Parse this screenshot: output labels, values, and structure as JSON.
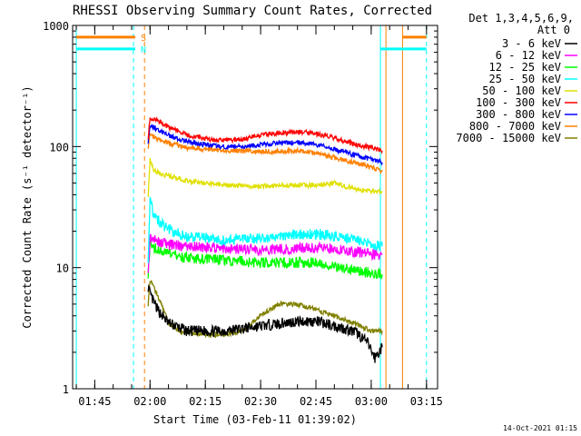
{
  "title": "RHESSI Observing Summary Count Rates, Corrected",
  "footer_date": "14-Oct-2021 01:15",
  "chart_data": {
    "type": "line",
    "title": "RHESSI Observing Summary Count Rates, Corrected",
    "xlabel": "Start Time (03-Feb-11 01:39:02)",
    "ylabel": "Corrected Count Rate (s⁻¹ detector⁻¹)",
    "yscale": "log",
    "ylim": [
      1,
      1000
    ],
    "xlim": [
      "01:39:00",
      "03:18:00"
    ],
    "x_unit": "HH:MM",
    "yticks": [
      1,
      10,
      100,
      1000
    ],
    "yticklabels": [
      "1",
      "10",
      "100",
      "1000"
    ],
    "xticks": [
      "01:45",
      "02:00",
      "02:15",
      "02:30",
      "02:45",
      "03:00",
      "03:15"
    ],
    "xticklabels": [
      "01:45",
      "02:00",
      "02:15",
      "02:30",
      "02:45",
      "03:00",
      "03:15"
    ],
    "legend": {
      "placement": "right",
      "header": [
        "Det 1,3,4,5,6,9,",
        "Att 0"
      ]
    },
    "series": [
      {
        "name": "3 - 6 keV",
        "color": "#000000",
        "x": [
          "01:59:30",
          "02:00:00",
          "02:02:00",
          "02:05:00",
          "02:10:00",
          "02:20:00",
          "02:30:00",
          "02:40:00",
          "02:45:00",
          "02:52:00",
          "02:56:00",
          "02:59:00",
          "03:01:00",
          "03:03:00"
        ],
        "y": [
          7.0,
          6.0,
          4.5,
          3.5,
          3.0,
          3.0,
          3.3,
          3.6,
          3.6,
          3.2,
          2.9,
          2.4,
          1.8,
          2.2
        ]
      },
      {
        "name": "6 - 12 keV",
        "color": "#ff00ff",
        "x": [
          "01:59:30",
          "02:00:00",
          "02:02:00",
          "02:05:00",
          "02:10:00",
          "02:20:00",
          "02:30:00",
          "02:40:00",
          "02:45:00",
          "02:52:00",
          "02:56:00",
          "03:00:00",
          "03:03:00"
        ],
        "y": [
          10,
          18,
          16.5,
          15.5,
          15.0,
          14.5,
          14.0,
          14.5,
          14.5,
          14.0,
          13.5,
          13.0,
          12.8
        ]
      },
      {
        "name": "12 - 25 keV",
        "color": "#00ff00",
        "x": [
          "01:59:30",
          "02:00:00",
          "02:02:00",
          "02:05:00",
          "02:10:00",
          "02:20:00",
          "02:30:00",
          "02:40:00",
          "02:45:00",
          "02:52:00",
          "02:56:00",
          "03:00:00",
          "03:03:00"
        ],
        "y": [
          9,
          16,
          14,
          13.0,
          12.0,
          11.5,
          11.0,
          11.0,
          11.0,
          10.0,
          9.5,
          9.0,
          8.8
        ]
      },
      {
        "name": "25 - 50 keV",
        "color": "#00ffff",
        "x": [
          "01:59:30",
          "02:00:00",
          "02:01:00",
          "02:03:00",
          "02:06:00",
          "02:10:00",
          "02:20:00",
          "02:30:00",
          "02:40:00",
          "02:45:00",
          "02:52:00",
          "02:56:00",
          "03:00:00",
          "03:03:00"
        ],
        "y": [
          12,
          38,
          27,
          23,
          20,
          18,
          17,
          17.5,
          19.0,
          19.0,
          18.0,
          16.5,
          15.5,
          15.0
        ]
      },
      {
        "name": "50 - 100 keV",
        "color": "#e0e000",
        "x": [
          "01:59:30",
          "02:00:00",
          "02:01:00",
          "02:03:00",
          "02:06:00",
          "02:10:00",
          "02:20:00",
          "02:30:00",
          "02:40:00",
          "02:45:00",
          "02:50:00",
          "02:56:00",
          "03:00:00",
          "03:03:00"
        ],
        "y": [
          40,
          77,
          63,
          60,
          56,
          52,
          48,
          47,
          48,
          48,
          50,
          44,
          43,
          42
        ]
      },
      {
        "name": "100 - 300 keV",
        "color": "#ff0000",
        "x": [
          "01:59:30",
          "02:00:00",
          "02:01:00",
          "02:03:00",
          "02:06:00",
          "02:10:00",
          "02:15:00",
          "02:20:00",
          "02:25:00",
          "02:30:00",
          "02:35:00",
          "02:40:00",
          "02:45:00",
          "02:50:00",
          "02:55:00",
          "03:00:00",
          "03:03:00"
        ],
        "y": [
          120,
          172,
          170,
          155,
          140,
          125,
          116,
          112,
          115,
          124,
          130,
          132,
          128,
          118,
          105,
          98,
          92
        ]
      },
      {
        "name": "300 - 800 keV",
        "color": "#0000ff",
        "x": [
          "01:59:30",
          "02:00:00",
          "02:01:00",
          "02:03:00",
          "02:06:00",
          "02:10:00",
          "02:15:00",
          "02:20:00",
          "02:25:00",
          "02:30:00",
          "02:35:00",
          "02:40:00",
          "02:45:00",
          "02:50:00",
          "02:55:00",
          "03:00:00",
          "03:03:00"
        ],
        "y": [
          110,
          150,
          145,
          132,
          120,
          110,
          103,
          100,
          100,
          104,
          107,
          108,
          104,
          95,
          86,
          78,
          74
        ]
      },
      {
        "name": "800 - 7000 keV",
        "color": "#ff8000",
        "x": [
          "01:59:30",
          "02:00:00",
          "02:01:00",
          "02:03:00",
          "02:06:00",
          "02:10:00",
          "02:20:00",
          "02:30:00",
          "02:40:00",
          "02:45:00",
          "02:50:00",
          "02:55:00",
          "03:00:00",
          "03:03:00"
        ],
        "y": [
          100,
          128,
          120,
          112,
          105,
          98,
          92,
          91,
          92,
          88,
          81,
          74,
          68,
          62
        ]
      },
      {
        "name": "7000 - 15000 keV",
        "color": "#808000",
        "x": [
          "01:59:30",
          "02:00:00",
          "02:01:00",
          "02:03:00",
          "02:05:00",
          "02:08:00",
          "02:15:00",
          "02:20:00",
          "02:25:00",
          "02:30:00",
          "02:35:00",
          "02:40:00",
          "02:45:00",
          "02:50:00",
          "02:55:00",
          "03:00:00",
          "03:03:00"
        ],
        "y": [
          5.0,
          8.0,
          7.0,
          5.0,
          3.5,
          3.0,
          2.8,
          2.8,
          3.0,
          4.0,
          5.0,
          5.0,
          4.5,
          4.0,
          3.5,
          3.0,
          3.0
        ]
      }
    ],
    "annotations": [
      {
        "label": "S",
        "color": "#ff8000",
        "x": "01:56:30",
        "y": 800
      },
      {
        "label": "N",
        "color": "#00ffff",
        "x": "01:56:30",
        "y": 640
      }
    ],
    "flag_lines": [
      {
        "color": "#ff8000",
        "x0": "01:40:00",
        "x1": "01:56:00",
        "y": 800
      },
      {
        "color": "#00ffff",
        "x0": "01:40:00",
        "x1": "01:56:00",
        "y": 640
      },
      {
        "color": "#ff8000",
        "x0": "03:08:30",
        "x1": "03:15:00",
        "y": 800
      },
      {
        "color": "#00ffff",
        "x0": "03:02:30",
        "x1": "03:15:00",
        "y": 640
      }
    ],
    "solid_markers": [
      {
        "color": "#00ffff",
        "x": "01:40:00"
      },
      {
        "color": "#00ffff",
        "x": "03:02:30"
      },
      {
        "color": "#ff8000",
        "x": "03:04:00"
      },
      {
        "color": "#ff8000",
        "x": "03:08:30"
      }
    ],
    "dashed_markers": [
      {
        "color": "#00ffff",
        "x": "01:55:30"
      },
      {
        "color": "#ff8000",
        "x": "01:58:30"
      },
      {
        "color": "#00ffff",
        "x": "03:15:00"
      }
    ]
  }
}
